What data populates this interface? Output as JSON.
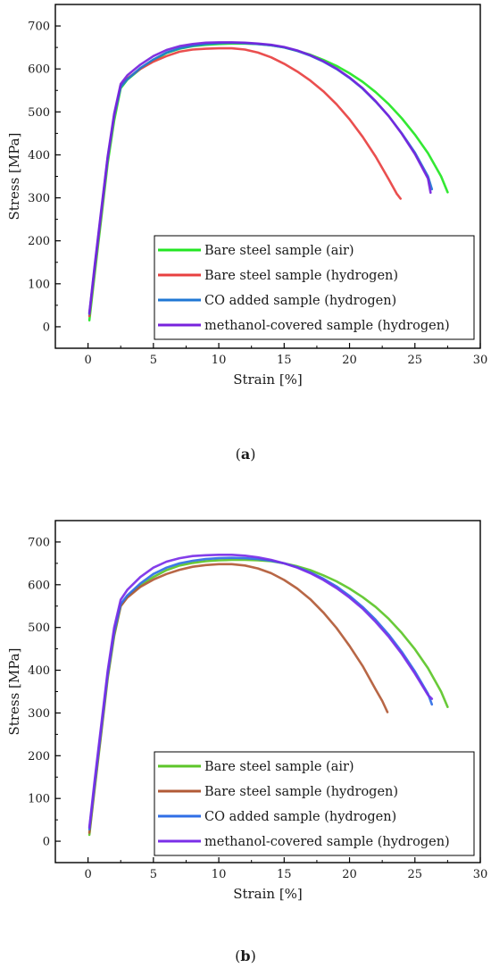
{
  "chart_data": [
    {
      "type": "line",
      "caption": "(a)",
      "xlabel": "Strain [%]",
      "ylabel": "Stress [MPa]",
      "xlim": [
        -2.5,
        30
      ],
      "ylim": [
        -50,
        750
      ],
      "xticks": [
        0,
        5,
        10,
        15,
        20,
        25,
        30
      ],
      "yticks": [
        0,
        100,
        200,
        300,
        400,
        500,
        600,
        700
      ],
      "grid": false,
      "legend_position": "bottom-right",
      "series": [
        {
          "name": "Bare steel sample (air)",
          "color": "#22e622",
          "x": [
            0.1,
            0.5,
            1.0,
            1.5,
            2.0,
            2.5,
            3.0,
            4.0,
            5.0,
            6.0,
            7.0,
            8.0,
            9.0,
            10.0,
            11.0,
            12.0,
            13.0,
            14.0,
            15.0,
            16.0,
            17.0,
            18.0,
            19.0,
            20.0,
            21.0,
            22.0,
            23.0,
            24.0,
            25.0,
            26.0,
            27.0,
            27.5
          ],
          "y": [
            15,
            120,
            250,
            380,
            480,
            555,
            575,
            600,
            620,
            637,
            647,
            653,
            656,
            658,
            659,
            659,
            658,
            655,
            650,
            642,
            633,
            621,
            607,
            590,
            570,
            546,
            518,
            485,
            447,
            404,
            350,
            313
          ]
        },
        {
          "name": "Bare steel sample (hydrogen)",
          "color": "#e84040",
          "x": [
            0.1,
            0.5,
            1.0,
            1.5,
            2.0,
            2.5,
            3.0,
            4.0,
            5.0,
            6.0,
            7.0,
            8.0,
            9.0,
            10.0,
            11.0,
            12.0,
            13.0,
            14.0,
            15.0,
            16.0,
            17.0,
            18.0,
            19.0,
            20.0,
            21.0,
            22.0,
            23.0,
            23.6,
            23.9
          ],
          "y": [
            25,
            130,
            260,
            390,
            490,
            560,
            578,
            600,
            617,
            630,
            640,
            645,
            647,
            648,
            648,
            645,
            638,
            627,
            612,
            594,
            573,
            548,
            518,
            483,
            442,
            396,
            343,
            310,
            298
          ]
        },
        {
          "name": "CO added sample (hydrogen)",
          "color": "#1f77d4",
          "x": [
            0.1,
            0.5,
            1.0,
            1.5,
            2.0,
            2.5,
            3.0,
            4.0,
            5.0,
            6.0,
            7.0,
            8.0,
            9.0,
            10.0,
            11.0,
            12.0,
            13.0,
            14.0,
            15.0,
            16.0,
            17.0,
            18.0,
            19.0,
            20.0,
            21.0,
            22.0,
            23.0,
            24.0,
            25.0,
            26.0,
            26.3
          ],
          "y": [
            30,
            135,
            265,
            392,
            492,
            558,
            576,
            602,
            622,
            638,
            648,
            654,
            658,
            660,
            661,
            660,
            658,
            655,
            650,
            642,
            631,
            617,
            600,
            579,
            554,
            524,
            490,
            450,
            405,
            350,
            320
          ]
        },
        {
          "name": "methanol-covered sample (hydrogen)",
          "color": "#7722dd",
          "x": [
            0.1,
            0.5,
            1.0,
            1.5,
            2.0,
            2.5,
            3.0,
            4.0,
            5.0,
            6.0,
            7.0,
            8.0,
            9.0,
            10.0,
            11.0,
            12.0,
            13.0,
            14.0,
            15.0,
            16.0,
            17.0,
            18.0,
            19.0,
            20.0,
            21.0,
            22.0,
            23.0,
            24.0,
            25.0,
            26.0,
            26.2
          ],
          "y": [
            32,
            140,
            270,
            396,
            496,
            565,
            585,
            610,
            630,
            644,
            653,
            658,
            661,
            662,
            662,
            661,
            659,
            656,
            651,
            643,
            632,
            618,
            601,
            580,
            555,
            525,
            490,
            449,
            402,
            345,
            312
          ]
        }
      ]
    },
    {
      "type": "line",
      "caption": "(b)",
      "xlabel": "Strain [%]",
      "ylabel": "Stress [MPa]",
      "xlim": [
        -2.5,
        30
      ],
      "ylim": [
        -50,
        750
      ],
      "xticks": [
        0,
        5,
        10,
        15,
        20,
        25,
        30
      ],
      "yticks": [
        0,
        100,
        200,
        300,
        400,
        500,
        600,
        700
      ],
      "grid": false,
      "legend_position": "bottom-right",
      "series": [
        {
          "name": "Bare steel sample (air)",
          "color": "#5cc528",
          "x": [
            0.1,
            0.5,
            1.0,
            1.5,
            2.0,
            2.5,
            3.0,
            4.0,
            5.0,
            6.0,
            7.0,
            8.0,
            9.0,
            10.0,
            11.0,
            12.0,
            13.0,
            14.0,
            15.0,
            16.0,
            17.0,
            18.0,
            19.0,
            20.0,
            21.0,
            22.0,
            23.0,
            24.0,
            25.0,
            26.0,
            27.0,
            27.5
          ],
          "y": [
            15,
            120,
            250,
            380,
            480,
            550,
            572,
            598,
            618,
            634,
            645,
            651,
            655,
            657,
            658,
            658,
            657,
            655,
            650,
            643,
            634,
            622,
            608,
            591,
            571,
            548,
            520,
            487,
            449,
            405,
            350,
            314
          ]
        },
        {
          "name": "Bare steel sample (hydrogen)",
          "color": "#b25a36",
          "x": [
            0.1,
            0.5,
            1.0,
            1.5,
            2.0,
            2.5,
            3.0,
            4.0,
            5.0,
            6.0,
            7.0,
            8.0,
            9.0,
            10.0,
            11.0,
            12.0,
            13.0,
            14.0,
            15.0,
            16.0,
            17.0,
            18.0,
            19.0,
            20.0,
            21.0,
            22.0,
            22.5,
            22.9
          ],
          "y": [
            20,
            125,
            255,
            385,
            485,
            550,
            570,
            595,
            612,
            625,
            635,
            642,
            646,
            648,
            648,
            645,
            638,
            627,
            611,
            591,
            566,
            535,
            499,
            457,
            410,
            355,
            328,
            302
          ]
        },
        {
          "name": "CO added sample (hydrogen)",
          "color": "#2f6ee6",
          "x": [
            0.1,
            0.5,
            1.0,
            1.5,
            2.0,
            2.5,
            3.0,
            4.0,
            5.0,
            6.0,
            7.0,
            8.0,
            9.0,
            10.0,
            11.0,
            12.0,
            13.0,
            14.0,
            15.0,
            16.0,
            17.0,
            18.0,
            19.0,
            20.0,
            21.0,
            22.0,
            23.0,
            24.0,
            25.0,
            26.0,
            26.3
          ],
          "y": [
            28,
            132,
            262,
            390,
            490,
            555,
            575,
            603,
            625,
            640,
            650,
            656,
            660,
            662,
            663,
            662,
            660,
            656,
            650,
            641,
            629,
            614,
            596,
            574,
            548,
            518,
            483,
            443,
            397,
            345,
            320
          ]
        },
        {
          "name": "methanol-covered sample (hydrogen)",
          "color": "#7a2ee8",
          "x": [
            0.1,
            0.5,
            1.0,
            1.5,
            2.0,
            2.5,
            3.0,
            4.0,
            5.0,
            6.0,
            7.0,
            8.0,
            9.0,
            10.0,
            11.0,
            12.0,
            13.0,
            14.0,
            15.0,
            16.0,
            17.0,
            18.0,
            19.0,
            20.0,
            21.0,
            22.0,
            23.0,
            24.0,
            25.0,
            26.0,
            26.3
          ],
          "y": [
            32,
            140,
            270,
            398,
            500,
            565,
            588,
            618,
            640,
            654,
            662,
            667,
            669,
            670,
            670,
            668,
            664,
            658,
            650,
            640,
            627,
            611,
            592,
            570,
            544,
            513,
            478,
            438,
            392,
            342,
            333
          ]
        }
      ]
    }
  ]
}
